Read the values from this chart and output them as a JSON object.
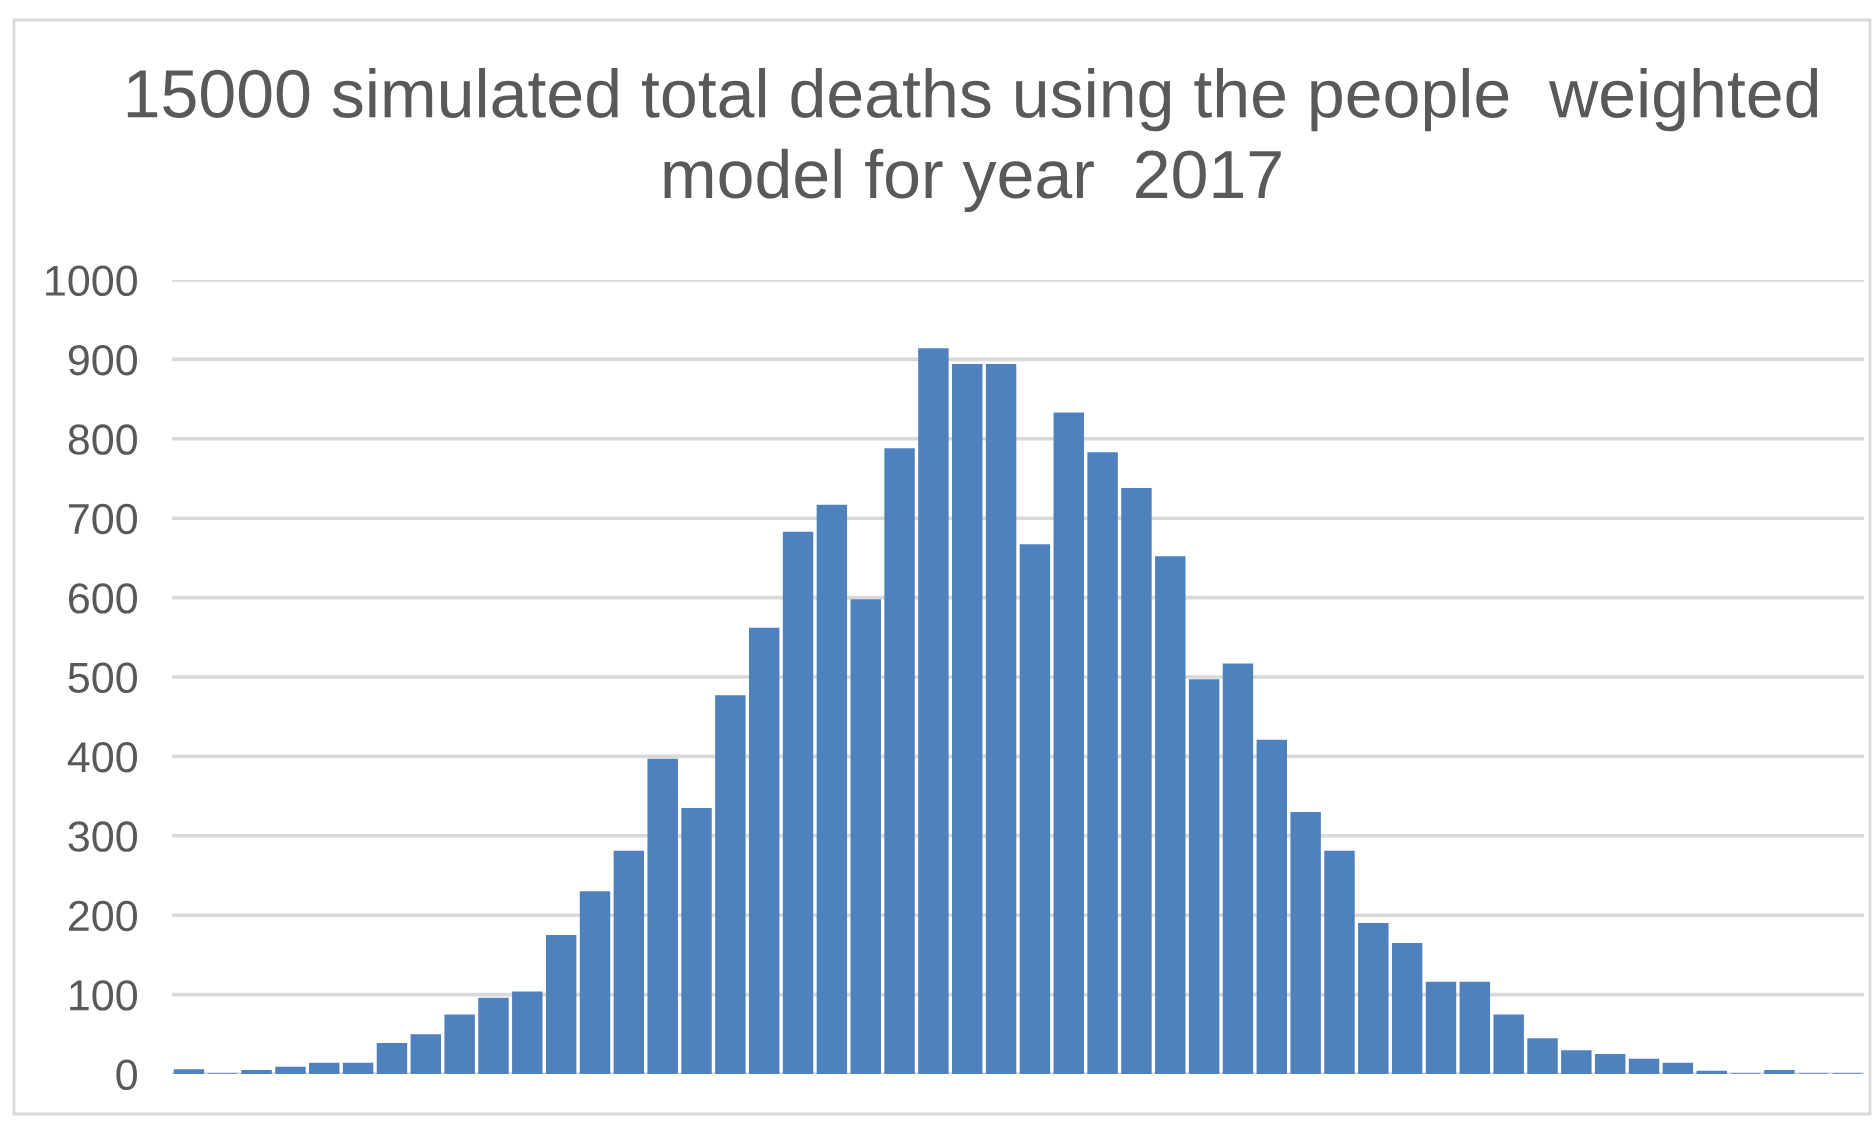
{
  "chart_data": {
    "type": "bar",
    "title": "15000 simulated total deaths using the people  weighted\nmodel for year  2017",
    "categories": [
      null,
      null,
      null,
      null,
      null,
      null,
      null,
      null,
      null,
      null,
      null,
      null,
      null,
      null,
      null,
      null,
      null,
      null,
      null,
      null,
      null,
      null,
      null,
      null,
      null,
      null,
      null,
      null,
      null,
      null,
      null,
      null,
      null,
      null,
      null,
      null,
      null,
      null,
      null,
      null,
      null,
      null,
      null,
      null,
      null,
      null,
      null,
      null,
      null,
      null
    ],
    "values": [
      5,
      0,
      4,
      8,
      13,
      13,
      38,
      49,
      74,
      95,
      103,
      174,
      229,
      280,
      396,
      334,
      476,
      561,
      682,
      716,
      597,
      787,
      913,
      893,
      893,
      666,
      832,
      782,
      737,
      651,
      496,
      516,
      420,
      329,
      280,
      189,
      164,
      115,
      115,
      74,
      44,
      29,
      24,
      18,
      13,
      3,
      0,
      4,
      0,
      0
    ],
    "color": "#4f81bd",
    "ylim": [
      0,
      1000
    ],
    "yticks": [
      0,
      100,
      200,
      300,
      400,
      500,
      600,
      700,
      800,
      900,
      1000
    ],
    "grid": "y",
    "tick_labels": "y"
  }
}
